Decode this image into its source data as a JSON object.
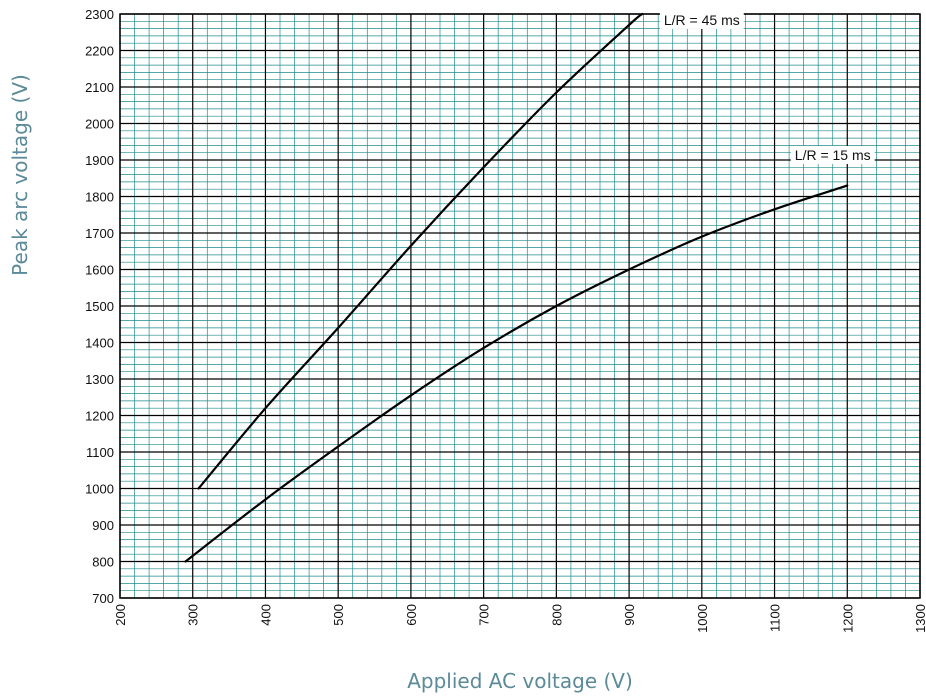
{
  "chart_data": {
    "type": "line",
    "xlabel": "Applied AC voltage (V)",
    "ylabel": "Peak arc voltage (V)",
    "xlim": [
      200,
      1300
    ],
    "ylim": [
      700,
      2300
    ],
    "x_ticks": [
      "200",
      "300",
      "400",
      "500",
      "600",
      "700",
      "800",
      "900",
      "1000",
      "1100",
      "1200",
      "1300"
    ],
    "y_ticks": [
      "700",
      "800",
      "900",
      "1000",
      "1100",
      "1200",
      "1300",
      "1400",
      "1500",
      "1600",
      "1700",
      "1800",
      "1900",
      "2000",
      "2100",
      "2200",
      "2300"
    ],
    "grid": true,
    "grid_color": "#1f8a8a",
    "series": [
      {
        "name": "L/R = 45 ms",
        "x": [
          308,
          400,
          500,
          600,
          700,
          800,
          900,
          918
        ],
        "y": [
          1000,
          1220,
          1440,
          1665,
          1880,
          2085,
          2270,
          2300
        ]
      },
      {
        "name": "L/R = 15 ms",
        "x": [
          290,
          400,
          500,
          600,
          700,
          800,
          900,
          1000,
          1100,
          1200
        ],
        "y": [
          800,
          970,
          1115,
          1255,
          1385,
          1500,
          1600,
          1690,
          1765,
          1830
        ]
      }
    ],
    "annotations": [
      {
        "text": "L/R = 45 ms",
        "x": 1000,
        "y": 2270
      },
      {
        "text": "L/R = 15 ms",
        "x": 1180,
        "y": 1900
      }
    ]
  }
}
